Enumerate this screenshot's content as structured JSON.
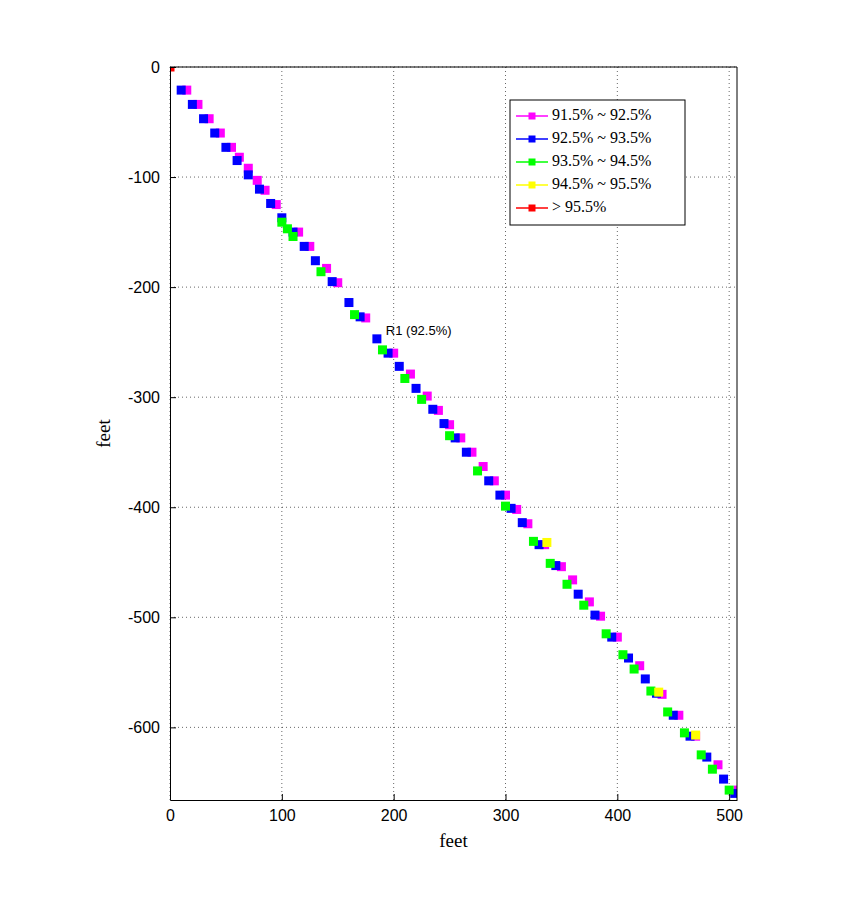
{
  "chart_data": {
    "type": "scatter",
    "x_label": "feet",
    "y_label": "feet",
    "xlim": [
      0,
      507
    ],
    "ylim": [
      -666,
      0
    ],
    "xticks": [
      0,
      100,
      200,
      300,
      400,
      500
    ],
    "yticks": [
      -600,
      -500,
      -400,
      -300,
      -200,
      -100,
      0
    ],
    "grid": true,
    "legend": "top-right",
    "marker": "square",
    "annotations": [
      {
        "text": "R1 (92.5%)",
        "x": 193,
        "y": -240
      }
    ],
    "series": [
      {
        "name": "91.5% ~ 92.5%",
        "color": "#ff00ff",
        "x": [
          15,
          25,
          35,
          45,
          55,
          62,
          70,
          78,
          85,
          95,
          115,
          125,
          140,
          150,
          175,
          200,
          215,
          230,
          240,
          250,
          260,
          270,
          280,
          290,
          300,
          310,
          320,
          335,
          350,
          360,
          375,
          385,
          400,
          420,
          440,
          455,
          470,
          490,
          508
        ],
        "values": [
          -21,
          -34,
          -47,
          -60,
          -73,
          -82,
          -92,
          -103,
          -112,
          -125,
          -150,
          -163,
          -183,
          -196,
          -228,
          -260,
          -279,
          -299,
          -312,
          -325,
          -337,
          -350,
          -363,
          -376,
          -389,
          -402,
          -415,
          -434,
          -454,
          -466,
          -486,
          -499,
          -518,
          -544,
          -570,
          -589,
          -608,
          -634,
          -657
        ]
      },
      {
        "name": "92.5% ~ 93.5%",
        "color": "#0000ff",
        "x": [
          10,
          20,
          30,
          40,
          50,
          60,
          70,
          80,
          90,
          100,
          110,
          120,
          130,
          145,
          160,
          170,
          185,
          195,
          205,
          220,
          235,
          245,
          255,
          265,
          285,
          295,
          305,
          315,
          330,
          345,
          365,
          380,
          395,
          410,
          425,
          435,
          450,
          465,
          480,
          495,
          505
        ],
        "values": [
          -21,
          -34,
          -47,
          -60,
          -73,
          -85,
          -98,
          -111,
          -124,
          -137,
          -150,
          -163,
          -176,
          -195,
          -214,
          -227,
          -247,
          -260,
          -272,
          -292,
          -311,
          -324,
          -337,
          -350,
          -376,
          -389,
          -401,
          -414,
          -434,
          -453,
          -479,
          -498,
          -518,
          -537,
          -556,
          -569,
          -589,
          -608,
          -627,
          -647,
          -660
        ]
      },
      {
        "name": "93.5% ~ 94.5%",
        "color": "#00ff00",
        "x": [
          100,
          105,
          110,
          135,
          165,
          190,
          210,
          225,
          250,
          275,
          300,
          325,
          340,
          355,
          370,
          390,
          405,
          415,
          430,
          445,
          460,
          475,
          485,
          500
        ],
        "values": [
          -141,
          -147,
          -154,
          -186,
          -225,
          -257,
          -283,
          -302,
          -335,
          -367,
          -399,
          -431,
          -451,
          -470,
          -489,
          -515,
          -534,
          -547,
          -567,
          -586,
          -605,
          -625,
          -638,
          -657
        ]
      },
      {
        "name": "94.5% ~ 95.5%",
        "color": "#ffff00",
        "x": [
          337,
          437,
          470
        ],
        "values": [
          -432,
          -568,
          -607
        ]
      },
      {
        "name": "> 95.5%",
        "color": "#ff0000",
        "x": [
          0
        ],
        "values": [
          0
        ]
      }
    ]
  }
}
